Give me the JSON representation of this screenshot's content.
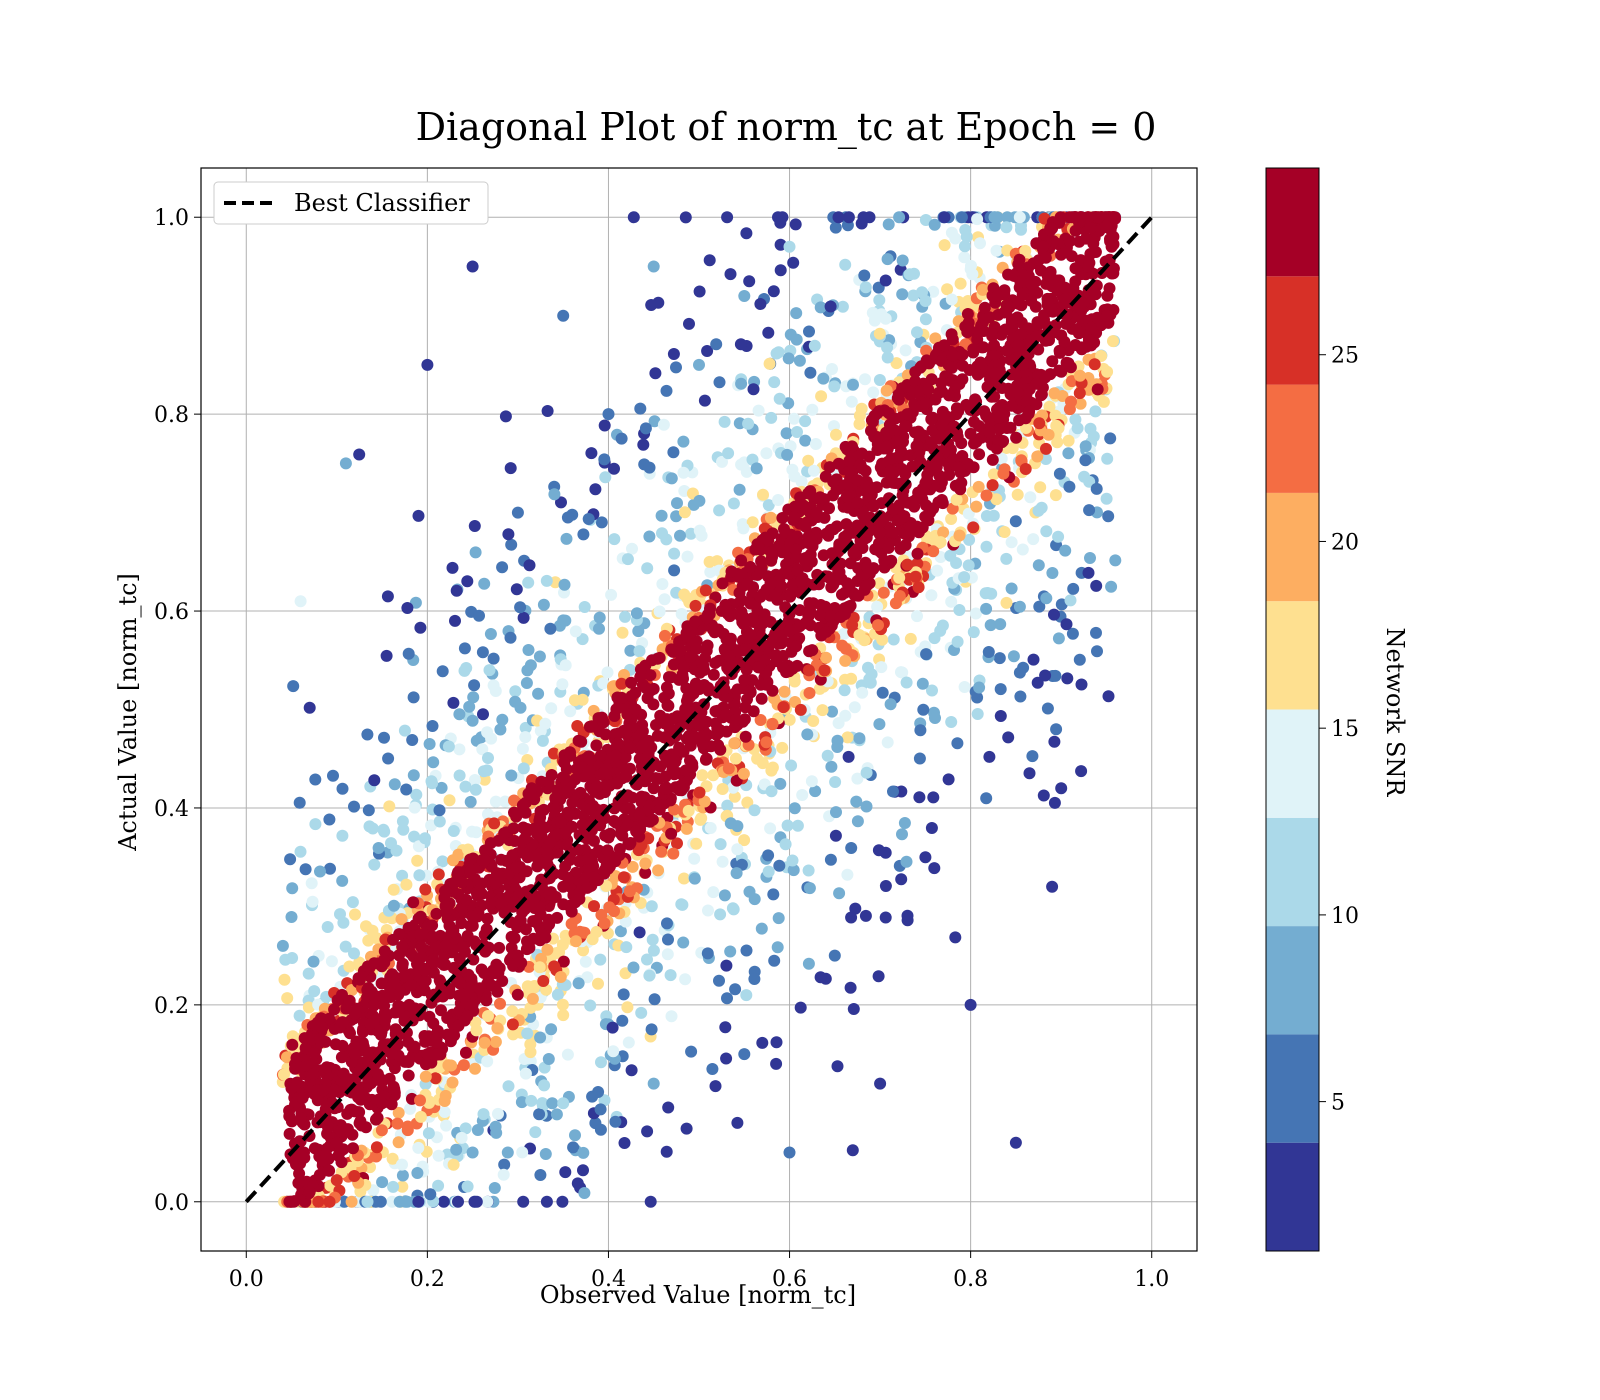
{
  "chart_data": {
    "type": "scatter",
    "title": "Diagonal Plot of norm_tc at Epoch = 0",
    "xlabel": "Observed Value [norm_tc]",
    "ylabel": "Actual Value [norm_tc]",
    "xlim": [
      -0.05,
      1.05
    ],
    "ylim": [
      -0.05,
      1.05
    ],
    "xticks": [
      "0.0",
      "0.2",
      "0.4",
      "0.6",
      "0.8",
      "1.0"
    ],
    "yticks": [
      "0.0",
      "0.2",
      "0.4",
      "0.6",
      "0.8",
      "1.0"
    ],
    "grid": true,
    "legend": {
      "position": "top-left",
      "entries": [
        {
          "label": "Best Classifier",
          "style": "dashed black line"
        }
      ]
    },
    "reference_line": {
      "label": "Best Classifier",
      "from": [
        0,
        0
      ],
      "to": [
        1,
        1
      ],
      "color": "#000000",
      "dash": "dashed"
    },
    "colorbar": {
      "label": "Network SNR",
      "range": [
        1,
        30
      ],
      "ticks": [
        "5",
        "10",
        "15",
        "20",
        "25"
      ],
      "tick_values": [
        5,
        10,
        15,
        20,
        25
      ],
      "bins": [
        {
          "from": 1,
          "to": 3.9,
          "color": "#313695"
        },
        {
          "from": 3.9,
          "to": 6.8,
          "color": "#4575b4"
        },
        {
          "from": 6.8,
          "to": 9.7,
          "color": "#74add1"
        },
        {
          "from": 9.7,
          "to": 12.6,
          "color": "#abd9e9"
        },
        {
          "from": 12.6,
          "to": 15.5,
          "color": "#e0f3f8"
        },
        {
          "from": 15.5,
          "to": 18.4,
          "color": "#fee090"
        },
        {
          "from": 18.4,
          "to": 21.3,
          "color": "#fdae61"
        },
        {
          "from": 21.3,
          "to": 24.2,
          "color": "#f46d43"
        },
        {
          "from": 24.2,
          "to": 27.1,
          "color": "#d73027"
        },
        {
          "from": 27.1,
          "to": 30,
          "color": "#a50026"
        }
      ]
    },
    "series": [
      {
        "points": [
          {
            "x": 0.07,
            "y": 0.01,
            "snr": 29
          },
          {
            "x": 0.1,
            "y": 0.06,
            "snr": 29
          },
          {
            "x": 0.12,
            "y": 0.15,
            "snr": 29
          },
          {
            "x": 0.15,
            "y": 0.1,
            "snr": 29
          },
          {
            "x": 0.18,
            "y": 0.2,
            "snr": 29
          },
          {
            "x": 0.2,
            "y": 0.15,
            "snr": 29
          },
          {
            "x": 0.22,
            "y": 0.26,
            "snr": 29
          },
          {
            "x": 0.25,
            "y": 0.2,
            "snr": 29
          },
          {
            "x": 0.28,
            "y": 0.33,
            "snr": 29
          },
          {
            "x": 0.3,
            "y": 0.25,
            "snr": 29
          },
          {
            "x": 0.33,
            "y": 0.38,
            "snr": 29
          },
          {
            "x": 0.35,
            "y": 0.32,
            "snr": 29
          },
          {
            "x": 0.38,
            "y": 0.45,
            "snr": 29
          },
          {
            "x": 0.4,
            "y": 0.37,
            "snr": 29
          },
          {
            "x": 0.43,
            "y": 0.5,
            "snr": 29
          },
          {
            "x": 0.45,
            "y": 0.42,
            "snr": 29
          },
          {
            "x": 0.48,
            "y": 0.56,
            "snr": 29
          },
          {
            "x": 0.5,
            "y": 0.47,
            "snr": 29
          },
          {
            "x": 0.53,
            "y": 0.6,
            "snr": 29
          },
          {
            "x": 0.55,
            "y": 0.53,
            "snr": 29
          },
          {
            "x": 0.58,
            "y": 0.66,
            "snr": 29
          },
          {
            "x": 0.6,
            "y": 0.58,
            "snr": 29
          },
          {
            "x": 0.63,
            "y": 0.7,
            "snr": 29
          },
          {
            "x": 0.65,
            "y": 0.63,
            "snr": 29
          },
          {
            "x": 0.68,
            "y": 0.76,
            "snr": 29
          },
          {
            "x": 0.7,
            "y": 0.68,
            "snr": 29
          },
          {
            "x": 0.73,
            "y": 0.8,
            "snr": 29
          },
          {
            "x": 0.75,
            "y": 0.73,
            "snr": 29
          },
          {
            "x": 0.78,
            "y": 0.86,
            "snr": 29
          },
          {
            "x": 0.8,
            "y": 0.78,
            "snr": 29
          },
          {
            "x": 0.83,
            "y": 0.92,
            "snr": 29
          },
          {
            "x": 0.85,
            "y": 0.84,
            "snr": 29
          },
          {
            "x": 0.88,
            "y": 0.97,
            "snr": 29
          },
          {
            "x": 0.9,
            "y": 0.88,
            "snr": 29
          },
          {
            "x": 0.93,
            "y": 0.95,
            "snr": 29
          },
          {
            "x": 0.95,
            "y": 0.99,
            "snr": 29
          },
          {
            "x": 0.15,
            "y": 0.02,
            "snr": 9
          },
          {
            "x": 0.25,
            "y": 0.05,
            "snr": 8
          },
          {
            "x": 0.35,
            "y": 0.1,
            "snr": 10
          },
          {
            "x": 0.45,
            "y": 0.12,
            "snr": 7
          },
          {
            "x": 0.55,
            "y": 0.15,
            "snr": 6
          },
          {
            "x": 0.6,
            "y": 0.05,
            "snr": 5
          },
          {
            "x": 0.65,
            "y": 0.25,
            "snr": 4
          },
          {
            "x": 0.7,
            "y": 0.12,
            "snr": 3
          },
          {
            "x": 0.75,
            "y": 0.35,
            "snr": 3
          },
          {
            "x": 0.8,
            "y": 0.2,
            "snr": 2
          },
          {
            "x": 0.85,
            "y": 0.06,
            "snr": 2
          },
          {
            "x": 0.9,
            "y": 0.42,
            "snr": 2
          },
          {
            "x": 0.2,
            "y": 0.85,
            "snr": 2
          },
          {
            "x": 0.25,
            "y": 0.95,
            "snr": 3
          },
          {
            "x": 0.3,
            "y": 0.7,
            "snr": 4
          },
          {
            "x": 0.35,
            "y": 0.9,
            "snr": 5
          },
          {
            "x": 0.4,
            "y": 0.8,
            "snr": 6
          },
          {
            "x": 0.45,
            "y": 0.95,
            "snr": 7
          },
          {
            "x": 0.5,
            "y": 0.85,
            "snr": 8
          },
          {
            "x": 0.55,
            "y": 0.92,
            "snr": 9
          },
          {
            "x": 0.6,
            "y": 0.97,
            "snr": 10
          },
          {
            "x": 0.11,
            "y": 0.75,
            "snr": 8
          },
          {
            "x": 0.06,
            "y": 0.61,
            "snr": 14
          },
          {
            "x": 0.89,
            "y": 0.32,
            "snr": 2
          }
        ]
      }
    ]
  }
}
